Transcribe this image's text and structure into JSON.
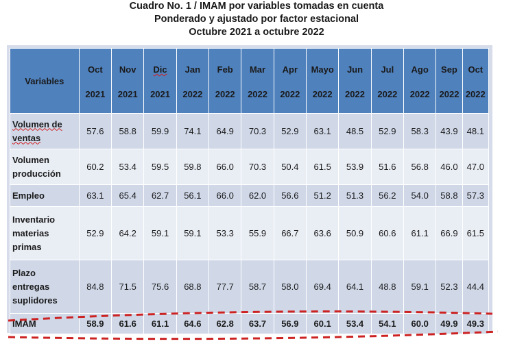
{
  "title": {
    "line1": "Cuadro No. 1 / IMAM por variables tomadas en cuenta",
    "line2": "Ponderado y ajustado por factor estacional",
    "line3": "Octubre 2021 a octubre 2022"
  },
  "table": {
    "header_label": "Variables",
    "columns": [
      {
        "month": "Oct",
        "year": "2021"
      },
      {
        "month": "Nov",
        "year": "2021"
      },
      {
        "month": "Dic",
        "year": "2021"
      },
      {
        "month": "Jan",
        "year": "2022"
      },
      {
        "month": "Feb",
        "year": "2022"
      },
      {
        "month": "Mar",
        "year": "2022"
      },
      {
        "month": "Apr",
        "year": "2022"
      },
      {
        "month": "Mayo",
        "year": "2022"
      },
      {
        "month": "Jun",
        "year": "2022"
      },
      {
        "month": "Jul",
        "year": "2022"
      },
      {
        "month": "Ago",
        "year": "2022"
      },
      {
        "month": "Sep",
        "year": "2022"
      },
      {
        "month": "Oct",
        "year": "2022"
      }
    ],
    "rows": [
      {
        "label": [
          "Volumen de",
          "ventas"
        ],
        "values": [
          "57.6",
          "58.8",
          "59.9",
          "74.1",
          "64.9",
          "70.3",
          "52.9",
          "63.1",
          "48.5",
          "52.9",
          "58.3",
          "43.9",
          "48.1"
        ]
      },
      {
        "label": [
          "Volumen",
          "producción"
        ],
        "values": [
          "60.2",
          "53.4",
          "59.5",
          "59.8",
          "66.0",
          "70.3",
          "50.4",
          "61.5",
          "53.9",
          "51.6",
          "56.8",
          "46.0",
          "47.0"
        ]
      },
      {
        "label": [
          "Empleo"
        ],
        "values": [
          "63.1",
          "65.4",
          "62.7",
          "56.1",
          "66.0",
          "62.0",
          "56.6",
          "51.2",
          "51.3",
          "56.2",
          "54.0",
          "58.8",
          "57.3"
        ]
      },
      {
        "label": [
          "Inventario",
          "materias",
          "primas"
        ],
        "values": [
          "52.9",
          "64.2",
          "59.1",
          "59.1",
          "53.3",
          "55.9",
          "66.7",
          "63.6",
          "50.9",
          "60.6",
          "61.1",
          "66.9",
          "61.5"
        ]
      },
      {
        "label": [
          "Plazo",
          "entregas",
          "suplidores"
        ],
        "values": [
          "84.8",
          "71.5",
          "75.6",
          "68.8",
          "77.7",
          "58.7",
          "58.0",
          "69.4",
          "64.1",
          "48.8",
          "59.1",
          "52.3",
          "44.4"
        ]
      },
      {
        "label": [
          "IMAM"
        ],
        "values": [
          "58.9",
          "61.6",
          "61.1",
          "64.6",
          "62.8",
          "63.7",
          "56.9",
          "60.1",
          "53.4",
          "54.1",
          "60.0",
          "49.9",
          "49.3"
        ]
      }
    ]
  },
  "colors": {
    "header_bg": "#4f81bd",
    "row_dark": "#d0d8e8",
    "row_light": "#e9edf4",
    "highlight_dash": "#cc2222"
  }
}
